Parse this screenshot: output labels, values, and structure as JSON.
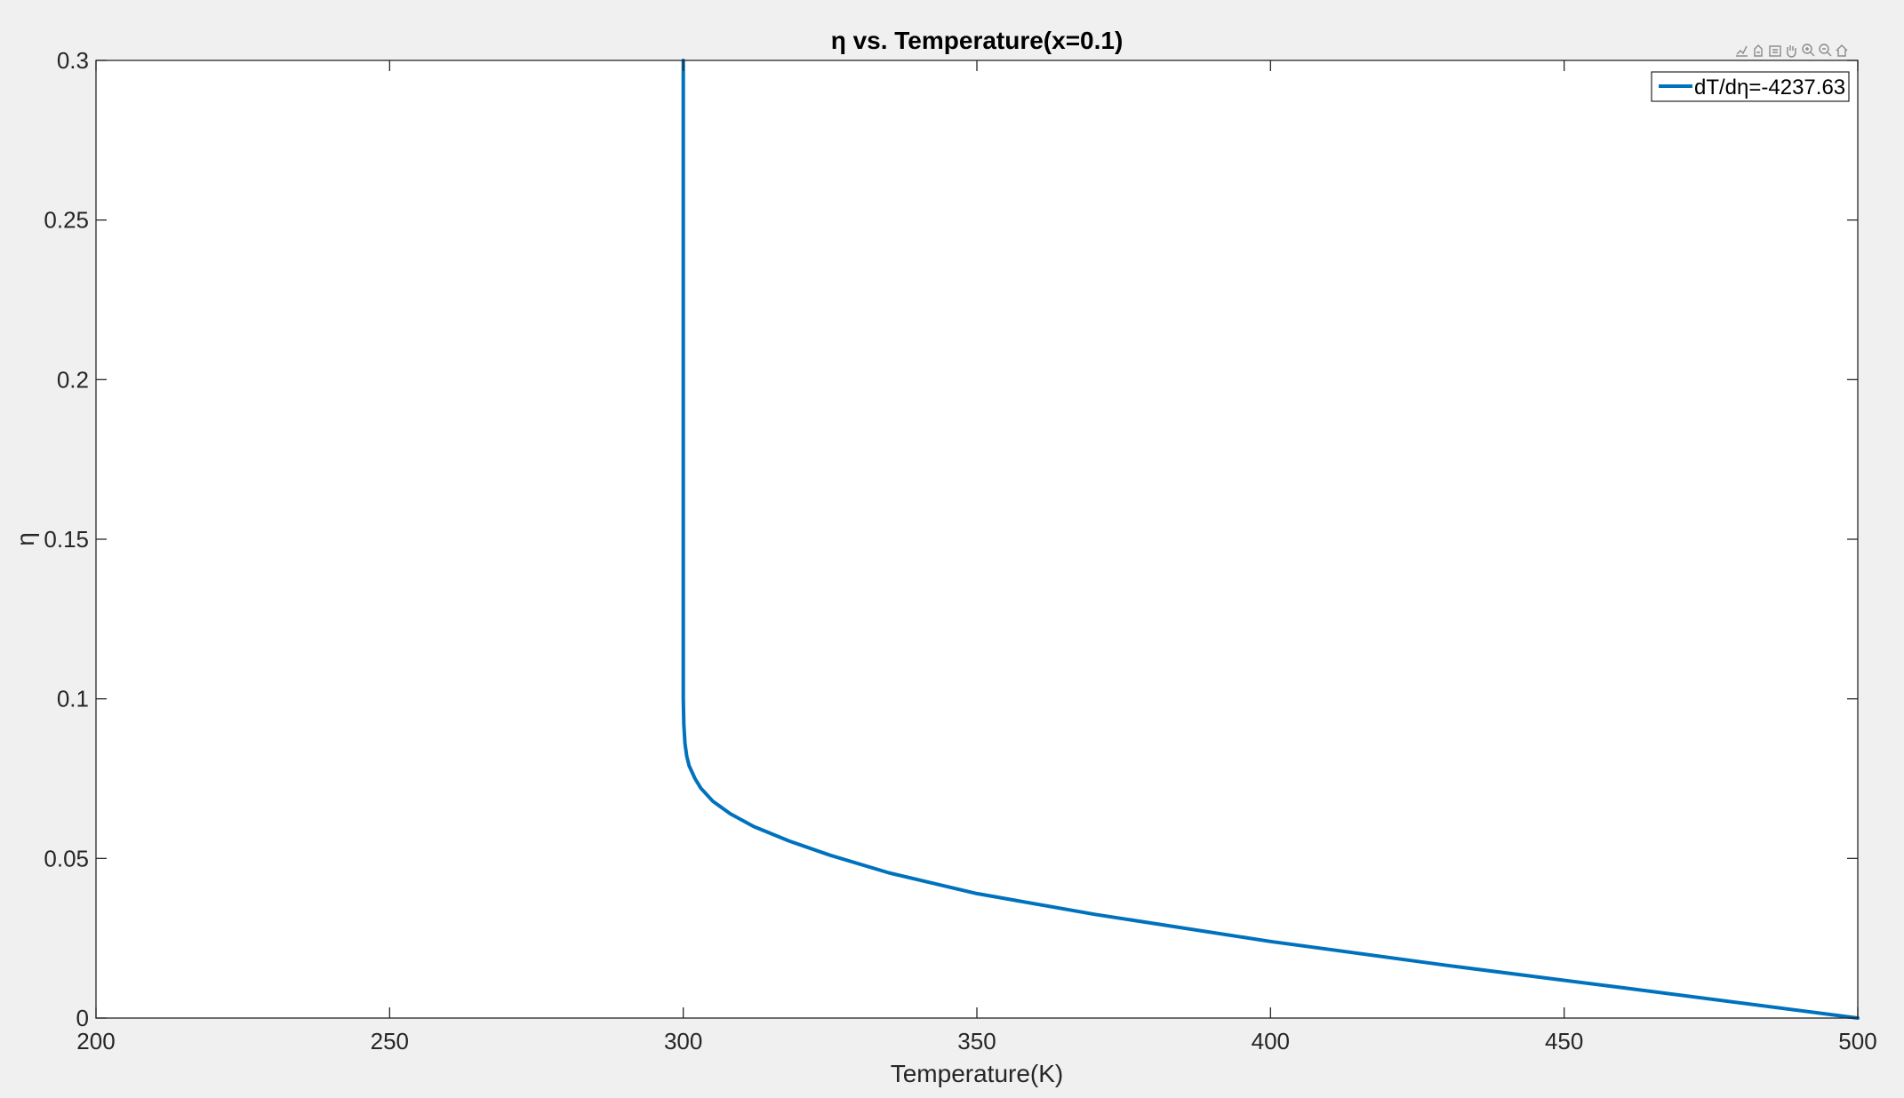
{
  "chart_data": {
    "type": "line",
    "title": "η vs. Temperature(x=0.1)",
    "xlabel": "Temperature(K)",
    "ylabel": "η",
    "xlim": [
      200,
      500
    ],
    "ylim": [
      0,
      0.3
    ],
    "xticks": [
      200,
      250,
      300,
      350,
      400,
      450,
      500
    ],
    "yticks": [
      0,
      0.05,
      0.1,
      0.15,
      0.2,
      0.25,
      0.3
    ],
    "xtick_labels": [
      "200",
      "250",
      "300",
      "350",
      "400",
      "450",
      "500"
    ],
    "ytick_labels": [
      "0",
      "0.05",
      "0.1",
      "0.15",
      "0.2",
      "0.25",
      "0.3"
    ],
    "grid": false,
    "box": true,
    "legend_position": "top-right",
    "series": [
      {
        "name": "dT/dη=-4237.63",
        "color": "#0072BD",
        "x": [
          300,
          300,
          300.1,
          300.3,
          300.6,
          301,
          302,
          303,
          305,
          308,
          312,
          318,
          325,
          335,
          350,
          370,
          400,
          430,
          460,
          500
        ],
        "y": [
          0.3,
          0.1,
          0.092,
          0.086,
          0.082,
          0.079,
          0.075,
          0.072,
          0.068,
          0.064,
          0.06,
          0.0555,
          0.051,
          0.0455,
          0.039,
          0.0325,
          0.024,
          0.0165,
          0.0095,
          0
        ]
      }
    ]
  },
  "toolbar": {
    "icons": [
      "brush-icon",
      "datatip-icon",
      "export-icon",
      "pan-icon",
      "zoom-in-icon",
      "zoom-out-icon",
      "home-icon"
    ]
  }
}
